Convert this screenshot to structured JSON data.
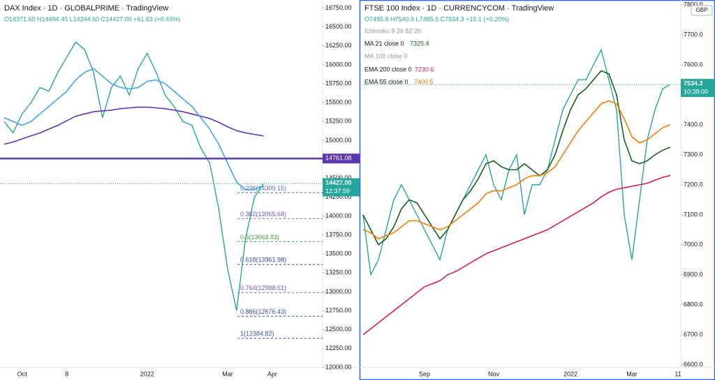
{
  "chart_data": [
    {
      "type": "line",
      "title": "DAX Index · 1D · GLOBALPRIME · TradingView",
      "ohlc": "O14371.60 H14494.45 L14344.60 C14427.00 +61.63 (+0.43%)",
      "categories": [
        null,
        null,
        "Oct",
        null,
        null,
        null,
        null,
        "8",
        null,
        null,
        null,
        null,
        null,
        null,
        null,
        null,
        "2022",
        null,
        null,
        null,
        null,
        null,
        null,
        null,
        null,
        "Mar",
        null,
        null,
        null,
        null,
        "Apr"
      ],
      "series": [
        {
          "color": "#26a69a",
          "values": [
            15250,
            15100,
            15350,
            15500,
            15700,
            15650,
            15900,
            16100,
            16300,
            16200,
            15900,
            15300,
            15700,
            15850,
            15600,
            15950,
            16150,
            15900,
            15600,
            15450,
            15250,
            15200,
            14900,
            14700,
            14100,
            13300,
            12750,
            13700,
            14250,
            14427,
            null
          ]
        },
        {
          "color": "#5e35b1",
          "values": [
            14950,
            14980,
            15020,
            15060,
            15100,
            15150,
            15200,
            15260,
            15320,
            15350,
            15380,
            15390,
            15400,
            15420,
            15430,
            15440,
            15440,
            15430,
            15420,
            15400,
            15380,
            15350,
            15320,
            15290,
            15240,
            15180,
            15130,
            15100,
            15080,
            15060,
            null
          ]
        },
        {
          "color": "#42a5f5",
          "values": [
            15300,
            15250,
            15200,
            15250,
            15350,
            15450,
            15550,
            15650,
            15800,
            15900,
            15950,
            15850,
            15750,
            15700,
            15680,
            15700,
            15780,
            15800,
            15750,
            15650,
            15550,
            15450,
            15300,
            15150,
            14950,
            14700,
            14450,
            14350,
            14350,
            14400,
            null
          ]
        }
      ],
      "ylim": [
        12000,
        16856
      ],
      "yticks": [
        {
          "value": 12000,
          "label": "12000.00"
        },
        {
          "value": 12250,
          "label": "12250.00"
        },
        {
          "value": 12500,
          "label": "12500.00"
        },
        {
          "value": 12750,
          "label": "12750.00"
        },
        {
          "value": 13000,
          "label": "13000.00"
        },
        {
          "value": 13250,
          "label": "13250.00"
        },
        {
          "value": 13500,
          "label": "13500.00"
        },
        {
          "value": 13750,
          "label": "13750.00"
        },
        {
          "value": 14000,
          "label": "14000.00"
        },
        {
          "value": 14250,
          "label": "14250.00"
        },
        {
          "value": 14500,
          "label": "14500.00"
        },
        {
          "value": 14750,
          "label": "14750.00"
        },
        {
          "value": 15000,
          "label": "15000.00"
        },
        {
          "value": 15250,
          "label": "15250.00"
        },
        {
          "value": 15500,
          "label": "15500.00"
        },
        {
          "value": 15750,
          "label": "15750.00"
        },
        {
          "value": 16000,
          "label": "16000.00"
        },
        {
          "value": 16250,
          "label": "16250.00"
        },
        {
          "value": 16500,
          "label": "16500.00"
        },
        {
          "value": 16750,
          "label": "16750.00"
        }
      ],
      "level": {
        "value": 14761.08,
        "color": "#5e35b1"
      },
      "last_price": {
        "value": 14427,
        "label": "14427.00"
      },
      "countdown": "12:37:59",
      "fib": [
        {
          "value": 14309.15,
          "label": "0.236(14309.15)",
          "color": "#5c6bc0"
        },
        {
          "value": 13965.68,
          "label": "0.382(13965.68)",
          "color": "#7e57c2"
        },
        {
          "value": 13663.83,
          "label": "0.5(13663.83)",
          "color": "#43a047"
        },
        {
          "value": 13361.98,
          "label": "0.618(13361.98)",
          "color": "#3949ab"
        },
        {
          "value": 12988.51,
          "label": "0.764(12988.51)",
          "color": "#7e57c2"
        },
        {
          "value": 12676.43,
          "label": "0.886(12676.43)",
          "color": "#3f51b5"
        },
        {
          "value": 12384.82,
          "label": "1(12384.82)",
          "color": "#3f51b5"
        }
      ]
    },
    {
      "type": "line",
      "title": "FTSE 100 Index · 1D · CURRENCYCOM · TradingView",
      "ohlc": "O7495.8 H7540.9 L7485.6 C7534.3 +15.1 (+0.20%)",
      "categories": [
        null,
        null,
        null,
        null,
        null,
        null,
        null,
        null,
        "Sep",
        null,
        null,
        null,
        null,
        null,
        null,
        null,
        null,
        "Nov",
        null,
        null,
        null,
        null,
        null,
        null,
        null,
        null,
        null,
        "2022",
        null,
        null,
        null,
        null,
        null,
        null,
        null,
        "Mar",
        null,
        null,
        null,
        null,
        null,
        "11"
      ],
      "series": [
        {
          "color": "#26a69a",
          "values": [
            7100,
            6900,
            6950,
            7050,
            7150,
            7200,
            7150,
            7100,
            7050,
            7000,
            6950,
            7050,
            7100,
            7150,
            7200,
            7250,
            7300,
            7200,
            7150,
            7250,
            7300,
            7100,
            7200,
            7200,
            7250,
            7350,
            7450,
            7500,
            7550,
            7550,
            7600,
            7650,
            7550,
            7450,
            7100,
            6950,
            7150,
            7350,
            7450,
            7520,
            7534.3,
            null
          ]
        },
        {
          "name": "MA 21 close 0",
          "color": "#1b5e20",
          "legend_value": 7325.4,
          "values": [
            7100,
            7050,
            7000,
            7020,
            7060,
            7120,
            7150,
            7140,
            7100,
            7060,
            7020,
            7050,
            7100,
            7150,
            7180,
            7220,
            7270,
            7280,
            7260,
            7250,
            7250,
            7270,
            7250,
            7230,
            7250,
            7300,
            7380,
            7450,
            7500,
            7520,
            7550,
            7580,
            7570,
            7500,
            7350,
            7280,
            7270,
            7280,
            7300,
            7315,
            7325.4,
            null
          ]
        },
        {
          "name": "EMA 200 close 0",
          "color": "#d81b60",
          "legend_value": 7230.6,
          "values": [
            6700,
            6720,
            6740,
            6760,
            6780,
            6800,
            6820,
            6840,
            6860,
            6870,
            6880,
            6900,
            6910,
            6925,
            6940,
            6955,
            6970,
            6980,
            6990,
            7000,
            7010,
            7020,
            7030,
            7040,
            7050,
            7065,
            7080,
            7095,
            7110,
            7125,
            7140,
            7160,
            7175,
            7185,
            7190,
            7195,
            7200,
            7205,
            7215,
            7225,
            7230.6,
            null
          ]
        },
        {
          "name": "EMA 55 close 0",
          "color": "#f57c00",
          "legend_value": 7400.5,
          "values": [
            7050,
            7040,
            7020,
            7030,
            7040,
            7060,
            7080,
            7080,
            7070,
            7060,
            7050,
            7060,
            7080,
            7100,
            7120,
            7140,
            7170,
            7180,
            7180,
            7190,
            7200,
            7220,
            7230,
            7230,
            7240,
            7260,
            7300,
            7340,
            7380,
            7410,
            7440,
            7470,
            7480,
            7470,
            7420,
            7360,
            7340,
            7350,
            7370,
            7390,
            7400.5,
            null
          ]
        }
      ],
      "hidden_indicators": [
        "Ichimoku 9 26 52 26",
        "MA 100 close 0"
      ],
      "ylim": [
        6591,
        7816
      ],
      "yticks": [
        {
          "value": 6600,
          "label": "6600.0"
        },
        {
          "value": 6700,
          "label": "6700.0"
        },
        {
          "value": 6800,
          "label": "6800.0"
        },
        {
          "value": 6900,
          "label": "6900.0"
        },
        {
          "value": 7000,
          "label": "7000.0"
        },
        {
          "value": 7100,
          "label": "7100.0"
        },
        {
          "value": 7200,
          "label": "7200.0"
        },
        {
          "value": 7300,
          "label": "7300.0"
        },
        {
          "value": 7400,
          "label": "7400.0"
        },
        {
          "value": 7500,
          "label": "7500.0"
        },
        {
          "value": 7600,
          "label": "7600.0"
        },
        {
          "value": 7700,
          "label": "7700.0"
        },
        {
          "value": 7800,
          "label": "7800.0"
        }
      ],
      "currency": "GBP",
      "last_price": {
        "value": 7534.3
      },
      "countdown": "10:38:00"
    }
  ]
}
